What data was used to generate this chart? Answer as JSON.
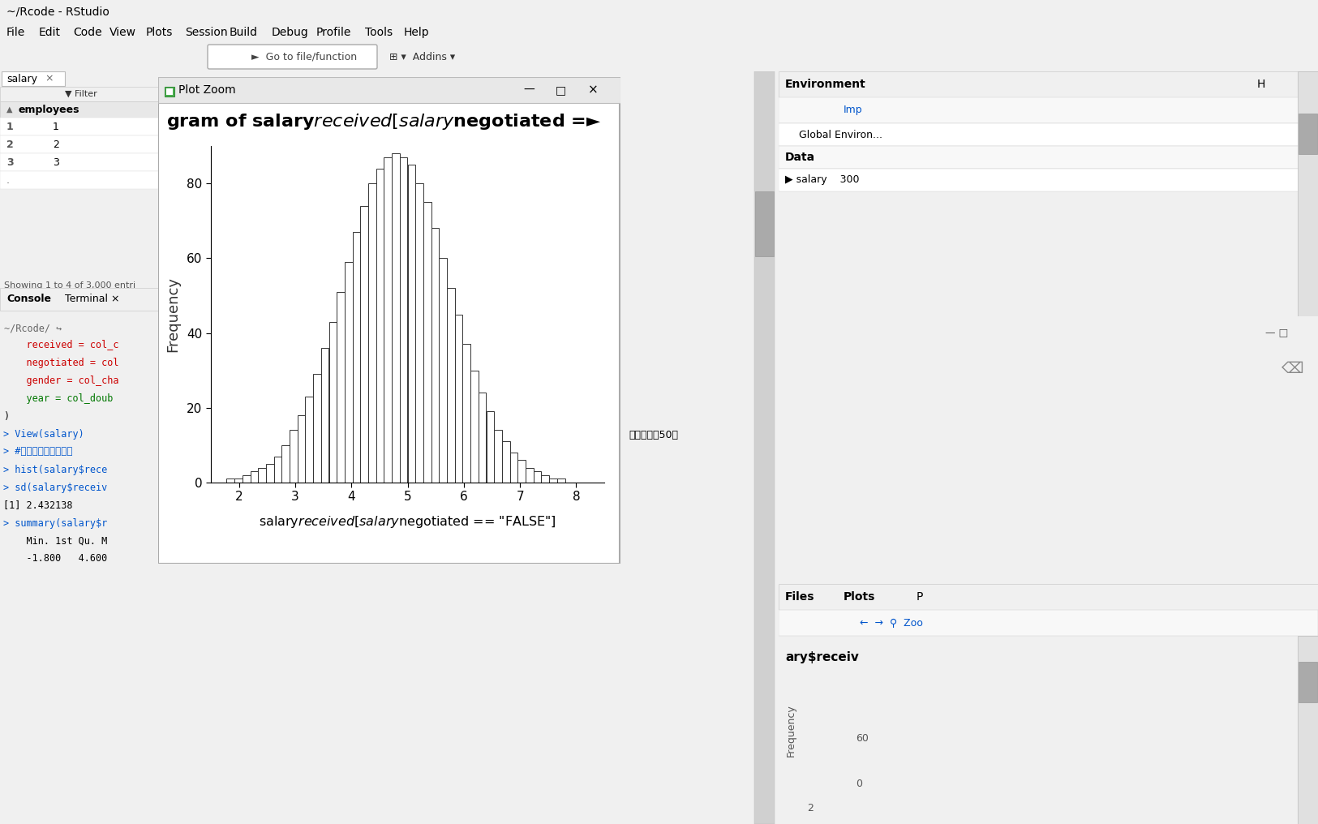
{
  "title_bar_text": "~/Rcode - RStudio",
  "menu_items": [
    "File",
    "Edit",
    "Code",
    "View",
    "Plots",
    "Session",
    "Build",
    "Debug",
    "Profile",
    "Tools",
    "Help"
  ],
  "plot_zoom_title": "Plot Zoom",
  "hist_title": "gram of salary$received[salary$negotiated ==",
  "hist_title_cut": "gram of salary$received[salary$negotiated =►",
  "hist_xlabel": "salary$received[salary$negotiated == \"FALSE\"]",
  "hist_ylabel": "Frequency",
  "hist_xlim": [
    1.5,
    8.5
  ],
  "hist_ylim": [
    0,
    90
  ],
  "hist_yticks": [
    0,
    20,
    40,
    60,
    80
  ],
  "hist_xticks": [
    2,
    3,
    4,
    5,
    6,
    7,
    8
  ],
  "bg_color": "#f0f0f0",
  "plot_bg": "#ffffff",
  "mu": 4.8,
  "sigma": 0.95,
  "n_total": 1500,
  "n_bins": 50,
  "console_lines": [
    [
      "    received = col_c",
      "red"
    ],
    [
      "    negotiated = col",
      "red"
    ],
    [
      "    gender = col_cha",
      "red"
    ],
    [
      "    year = col_doub",
      "green"
    ],
    [
      ")",
      "black"
    ],
    [
      "> View(salary)",
      "blue"
    ],
    [
      "> #注意文件路径和表格",
      "blue"
    ],
    [
      "> hist(salary$rece",
      "blue"
    ],
    [
      "> sd(salary$receiv",
      "blue"
    ],
    [
      "[1] 2.432138",
      "black"
    ],
    [
      "> summary(salary$r",
      "blue"
    ],
    [
      "    Min. 1st Qu. M",
      "black"
    ],
    [
      "    -1.800   4.600",
      "black"
    ]
  ],
  "right_panel_text": [
    [
      "Environment",
      "H"
    ],
    [
      "Global Environ"
    ],
    [
      "Data"
    ],
    [
      "salary  300"
    ]
  ],
  "files_panel": [
    "Files",
    "Plots"
  ],
  "right_mini_title": "ary$receiv",
  "right_mini_ylabel": "Frequency",
  "right_mini_ytick": "60",
  "right_mini_xtick": "2",
  "salary_tab": "salary",
  "employees_col": "employees",
  "data_rows": [
    "1",
    "2",
    "3"
  ],
  "row_nums": [
    "1",
    "2",
    "3"
  ],
  "showing_text": "Showing 1 to 4 of 3,000 entri",
  "console_tab": "Console",
  "terminal_tab": "Terminal ×",
  "rcode_path": "~/Rcode/ ↪"
}
